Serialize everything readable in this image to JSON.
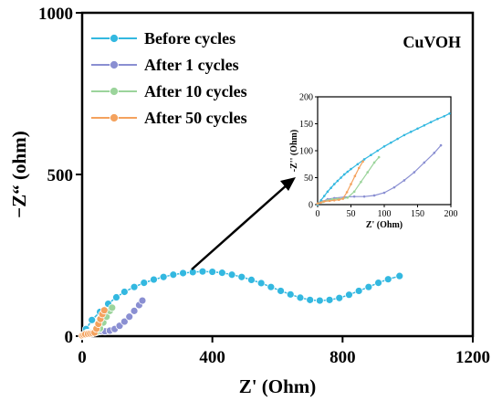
{
  "chart_data": [
    {
      "type": "scatter",
      "annotation": "CuVOH",
      "xlabel": "Z' (Ohm)",
      "ylabel": "−Z“ (ohm)",
      "xlim": [
        0,
        1200
      ],
      "ylim": [
        0,
        1000
      ],
      "xticks": [
        0,
        400,
        800,
        1200
      ],
      "yticks": [
        0,
        500,
        1000
      ],
      "legend": "top-left",
      "series": [
        {
          "name": "Before cycles",
          "color": "#33b8e0",
          "marker": "circle-line",
          "x": [
            0,
            12,
            30,
            55,
            80,
            105,
            130,
            160,
            190,
            220,
            250,
            280,
            310,
            340,
            370,
            400,
            430,
            460,
            490,
            520,
            550,
            580,
            610,
            640,
            670,
            700,
            730,
            760,
            790,
            820,
            850,
            880,
            910,
            940,
            975
          ],
          "y": [
            0,
            22,
            50,
            75,
            100,
            120,
            137,
            152,
            165,
            175,
            183,
            190,
            195,
            198,
            200,
            199,
            196,
            190,
            183,
            174,
            164,
            152,
            140,
            129,
            119,
            112,
            110,
            112,
            118,
            128,
            140,
            152,
            165,
            176,
            186
          ]
        },
        {
          "name": "After 1 cycles",
          "color": "#8a8fd2",
          "marker": "circle-line",
          "x": [
            0,
            8,
            15,
            25,
            40,
            55,
            70,
            85,
            100,
            115,
            130,
            145,
            160,
            175,
            185
          ],
          "y": [
            2,
            6,
            10,
            12,
            14,
            15,
            15,
            17,
            22,
            32,
            45,
            60,
            78,
            96,
            110
          ]
        },
        {
          "name": "After 10 cycles",
          "color": "#9bd49b",
          "marker": "circle-line",
          "x": [
            0,
            8,
            15,
            22,
            30,
            38,
            45,
            55,
            65,
            75,
            85,
            92
          ],
          "y": [
            2,
            5,
            8,
            10,
            11,
            11,
            13,
            24,
            42,
            60,
            78,
            88
          ]
        },
        {
          "name": "After 50 cycles",
          "color": "#f4a25e",
          "marker": "circle-line",
          "x": [
            0,
            5,
            10,
            18,
            25,
            32,
            38,
            44,
            50,
            56,
            62,
            68
          ],
          "y": [
            2,
            4,
            6,
            7,
            8,
            9,
            11,
            23,
            38,
            53,
            68,
            80
          ]
        }
      ]
    },
    {
      "type": "scatter",
      "inset": true,
      "xlabel": "Z' (Ohm)",
      "ylabel": "-Z'' (Ohm)",
      "xlim": [
        0,
        200
      ],
      "ylim": [
        0,
        200
      ],
      "xticks": [
        0,
        50,
        100,
        150,
        200
      ],
      "yticks": [
        0,
        50,
        100,
        150,
        200
      ],
      "series": [
        {
          "name": "Before cycles",
          "x": [
            0,
            5,
            10,
            15,
            20,
            25,
            30,
            35,
            40,
            45,
            50,
            60,
            70,
            80,
            90,
            100,
            110,
            120,
            130,
            140,
            150,
            160,
            170,
            180,
            190,
            198
          ],
          "y": [
            0,
            8,
            16,
            24,
            31,
            38,
            44,
            50,
            56,
            61,
            66,
            75,
            84,
            92,
            100,
            108,
            115,
            122,
            129,
            135,
            141,
            147,
            153,
            159,
            164,
            169
          ]
        },
        {
          "name": "After 1 cycles",
          "x": [
            0,
            8,
            15,
            25,
            40,
            55,
            70,
            85,
            100,
            115,
            130,
            145,
            160,
            175,
            185
          ],
          "y": [
            2,
            6,
            10,
            12,
            14,
            15,
            15,
            17,
            22,
            32,
            45,
            60,
            78,
            96,
            110
          ]
        },
        {
          "name": "After 10 cycles",
          "x": [
            0,
            8,
            15,
            22,
            30,
            38,
            45,
            55,
            65,
            75,
            85,
            92
          ],
          "y": [
            2,
            5,
            8,
            10,
            11,
            11,
            13,
            24,
            42,
            60,
            78,
            88
          ]
        },
        {
          "name": "After 50 cycles",
          "x": [
            0,
            5,
            10,
            18,
            25,
            32,
            38,
            44,
            50,
            56,
            62,
            68
          ],
          "y": [
            2,
            4,
            6,
            7,
            8,
            9,
            11,
            23,
            38,
            53,
            68,
            80
          ]
        }
      ]
    }
  ]
}
